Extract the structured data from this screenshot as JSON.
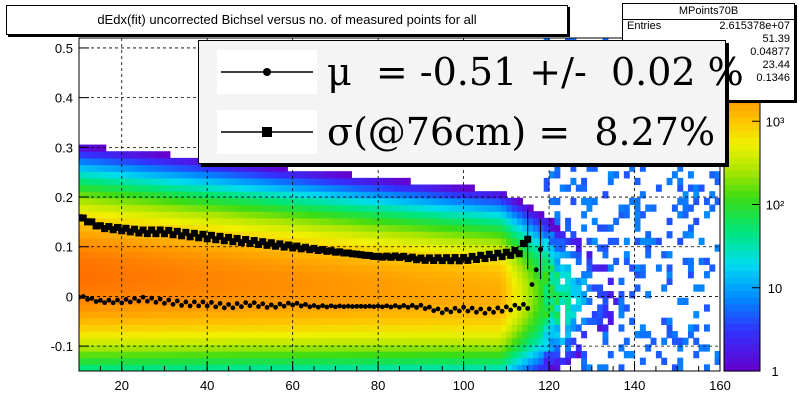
{
  "title": "dEdx(fit) uncorrected Bichsel versus no. of measured points for all",
  "stats": {
    "name": "MPoints70B",
    "rows": [
      {
        "label": "Entries",
        "value": "2.615378e+07"
      },
      {
        "label": "",
        "value": "51.39"
      },
      {
        "label": "",
        "value": "0.04877"
      },
      {
        "label": "",
        "value": "23.44"
      },
      {
        "label": "",
        "value": "0.1346"
      }
    ]
  },
  "legend": {
    "mu_text": "μ  = -0.51 +/-  0.02 %",
    "sigma_text": "σ(@76cm) =  8.27%"
  },
  "chart_data": {
    "type": "heatmap",
    "title": "dEdx(fit) uncorrected Bichsel versus no. of measured points for all",
    "xlabel": "",
    "ylabel": "",
    "xlim": [
      10,
      160
    ],
    "ylim": [
      -0.15,
      0.52
    ],
    "zlim": [
      1,
      10000
    ],
    "z_scale": "log",
    "x_ticks": [
      "20",
      "40",
      "60",
      "80",
      "100",
      "120",
      "140",
      "160"
    ],
    "y_ticks": [
      "-0.1",
      "0",
      "0.1",
      "0.2",
      "0.3",
      "0.4",
      "0.5"
    ],
    "z_ticks": [
      "1",
      "10",
      "10²",
      "10³"
    ],
    "grid": true,
    "series": [
      {
        "marker": "circle",
        "x": [
          10,
          15,
          20,
          25,
          30,
          35,
          40,
          45,
          50,
          55,
          60,
          65,
          70,
          75,
          80,
          85,
          90,
          95,
          100,
          105,
          110,
          113,
          115,
          116,
          118
        ],
        "y": [
          0.0,
          -0.01,
          -0.01,
          -0.005,
          -0.01,
          -0.015,
          -0.015,
          -0.02,
          -0.015,
          -0.02,
          -0.015,
          -0.02,
          -0.02,
          -0.02,
          -0.02,
          -0.02,
          -0.02,
          -0.03,
          -0.025,
          -0.03,
          -0.025,
          -0.02,
          -0.02,
          0.02,
          0.095
        ]
      },
      {
        "marker": "square",
        "x": [
          10,
          15,
          20,
          25,
          30,
          35,
          40,
          45,
          50,
          55,
          60,
          65,
          70,
          75,
          80,
          85,
          90,
          95,
          100,
          105,
          110,
          113,
          115
        ],
        "y": [
          0.16,
          0.14,
          0.135,
          0.13,
          0.13,
          0.125,
          0.12,
          0.115,
          0.11,
          0.105,
          0.1,
          0.095,
          0.09,
          0.085,
          0.08,
          0.08,
          0.075,
          0.075,
          0.075,
          0.08,
          0.085,
          0.09,
          0.115
        ]
      }
    ]
  }
}
